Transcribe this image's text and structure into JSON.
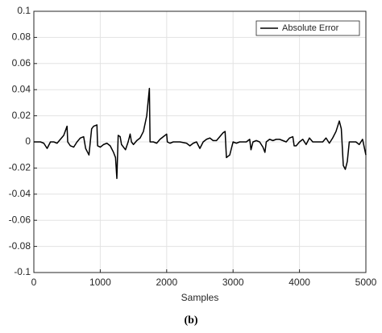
{
  "chart_data": {
    "type": "line",
    "xlabel": "Samples",
    "x": [
      0,
      100,
      150,
      200,
      250,
      300,
      350,
      400,
      450,
      500,
      510,
      550,
      600,
      650,
      700,
      750,
      780,
      830,
      850,
      870,
      900,
      950,
      960,
      1000,
      1050,
      1100,
      1150,
      1200,
      1230,
      1250,
      1270,
      1300,
      1320,
      1380,
      1420,
      1450,
      1470,
      1500,
      1550,
      1600,
      1650,
      1700,
      1740,
      1750,
      1800,
      1850,
      1900,
      1950,
      2000,
      2010,
      2050,
      2100,
      2200,
      2300,
      2350,
      2400,
      2450,
      2500,
      2550,
      2600,
      2650,
      2700,
      2750,
      2800,
      2850,
      2880,
      2900,
      2950,
      3000,
      3050,
      3100,
      3150,
      3200,
      3250,
      3270,
      3300,
      3350,
      3400,
      3450,
      3480,
      3500,
      3550,
      3600,
      3650,
      3700,
      3800,
      3850,
      3900,
      3920,
      3950,
      4000,
      4050,
      4100,
      4150,
      4200,
      4300,
      4350,
      4400,
      4450,
      4500,
      4550,
      4600,
      4630,
      4660,
      4690,
      4720,
      4750,
      4850,
      4900,
      4950,
      5000
    ],
    "series": [
      {
        "name": "Absolute Error",
        "color": "#000000",
        "values": [
          0,
          0,
          -0.001,
          -0.005,
          0,
          0,
          -0.001,
          0.002,
          0.005,
          0.012,
          0,
          -0.003,
          -0.004,
          0,
          0.003,
          0.004,
          -0.005,
          -0.01,
          0,
          0.01,
          0.012,
          0.013,
          -0.003,
          -0.004,
          -0.002,
          -0.001,
          -0.003,
          -0.008,
          -0.012,
          -0.028,
          0.005,
          0.004,
          -0.002,
          -0.006,
          0,
          0.006,
          0,
          -0.002,
          0.001,
          0.003,
          0.008,
          0.02,
          0.041,
          0,
          0,
          -0.001,
          0.002,
          0.004,
          0.006,
          0,
          -0.001,
          0,
          0,
          -0.001,
          -0.003,
          -0.001,
          0,
          -0.005,
          0,
          0.002,
          0.003,
          0.001,
          0.001,
          0.004,
          0.007,
          0.008,
          -0.012,
          -0.01,
          0,
          -0.001,
          0,
          0,
          0,
          0.002,
          -0.006,
          0,
          0.001,
          0,
          -0.004,
          -0.008,
          0,
          0.002,
          0.001,
          0.002,
          0.002,
          0,
          0.003,
          0.004,
          -0.003,
          -0.003,
          0,
          0.002,
          -0.002,
          0.003,
          0,
          0,
          0,
          0.003,
          -0.001,
          0.003,
          0.008,
          0.016,
          0.01,
          -0.018,
          -0.021,
          -0.015,
          0,
          0,
          -0.002,
          0.002,
          -0.01
        ]
      }
    ],
    "xlim": [
      0,
      5000
    ],
    "xticks": [
      0,
      1000,
      2000,
      3000,
      4000,
      5000
    ],
    "ylim": [
      -0.1,
      0.1
    ],
    "yticks": [
      -0.1,
      -0.08,
      -0.06,
      -0.04,
      -0.02,
      0,
      0.02,
      0.04,
      0.06,
      0.08,
      0.1
    ],
    "grid": true,
    "legend": "upper right"
  },
  "caption": "(b)"
}
